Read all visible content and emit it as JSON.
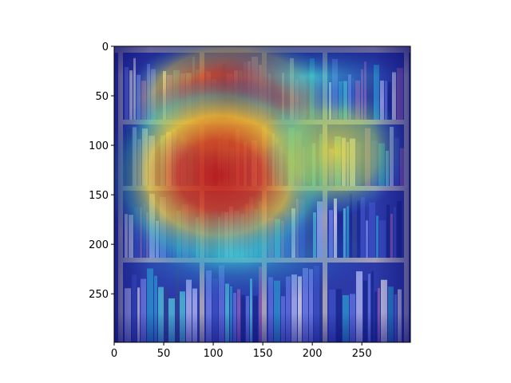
{
  "image": {
    "description_name": "bookshelf-heatmap-overlay",
    "x_ticks": [
      {
        "label": "0",
        "value": 0
      },
      {
        "label": "50",
        "value": 50
      },
      {
        "label": "100",
        "value": 100
      },
      {
        "label": "150",
        "value": 150
      },
      {
        "label": "200",
        "value": 200
      },
      {
        "label": "250",
        "value": 250
      }
    ],
    "y_ticks": [
      {
        "label": "0",
        "value": 0
      },
      {
        "label": "50",
        "value": 50
      },
      {
        "label": "100",
        "value": 100
      },
      {
        "label": "150",
        "value": 150
      },
      {
        "label": "200",
        "value": 200
      },
      {
        "label": "250",
        "value": 250
      }
    ],
    "xlim": [
      0,
      299
    ],
    "ylim": [
      299,
      0
    ],
    "colors": {
      "heat_low": "#1a1a8c",
      "heat_mid": "#2fb6c9",
      "heat_high_yellow": "#e8d63a",
      "heat_hot": "#c0202a",
      "shelf_wood": "#bcb2a8"
    }
  }
}
